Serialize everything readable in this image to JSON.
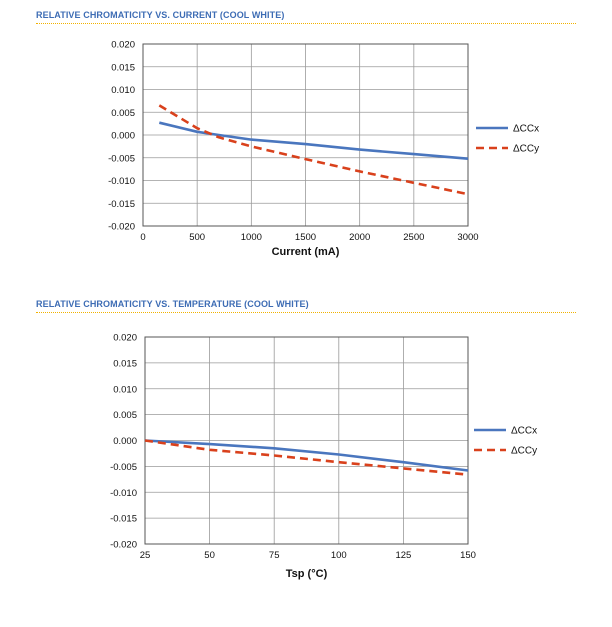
{
  "chart_data": [
    {
      "type": "line",
      "title": "RELATIVE CHROMATICITY VS. CURRENT (COOL WHITE)",
      "xlabel": "Current (mA)",
      "ylabel": "",
      "xlim": [
        0,
        3000
      ],
      "ylim": [
        -0.02,
        0.02
      ],
      "xticks": [
        "0",
        "500",
        "1000",
        "1500",
        "2000",
        "2500",
        "3000"
      ],
      "yticks": [
        "0.020",
        "0.015",
        "0.010",
        "0.005",
        "0.000",
        "-0.005",
        "-0.010",
        "-0.015",
        "-0.020"
      ],
      "grid": true,
      "legend": "right",
      "series": [
        {
          "name": "ΔCCx",
          "color": "#4a76be",
          "style": "solid",
          "x": [
            150,
            500,
            700,
            1000,
            1500,
            2000,
            2500,
            3000
          ],
          "y": [
            0.0027,
            0.0007,
            0.0,
            -0.001,
            -0.002,
            -0.0032,
            -0.0042,
            -0.0052
          ]
        },
        {
          "name": "ΔCCy",
          "color": "#d9411c",
          "style": "dashed",
          "x": [
            150,
            500,
            700,
            1000,
            1500,
            2000,
            2500,
            3000
          ],
          "y": [
            0.0065,
            0.0015,
            -0.0005,
            -0.0025,
            -0.0053,
            -0.008,
            -0.0105,
            -0.013
          ]
        }
      ]
    },
    {
      "type": "line",
      "title": "RELATIVE CHROMATICITY VS. TEMPERATURE (COOL WHITE)",
      "xlabel": "Tsp (°C)",
      "ylabel": "",
      "xlim": [
        25,
        150
      ],
      "ylim": [
        -0.02,
        0.02
      ],
      "xticks": [
        "25",
        "50",
        "75",
        "100",
        "125",
        "150"
      ],
      "yticks": [
        "0.020",
        "0.015",
        "0.010",
        "0.005",
        "0.000",
        "-0.005",
        "-0.010",
        "-0.015",
        "-0.020"
      ],
      "grid": true,
      "legend": "right",
      "series": [
        {
          "name": "ΔCCx",
          "color": "#4a76be",
          "style": "solid",
          "x": [
            25,
            50,
            75,
            100,
            125,
            150
          ],
          "y": [
            0.0,
            -0.0007,
            -0.0015,
            -0.0027,
            -0.0042,
            -0.0058
          ]
        },
        {
          "name": "ΔCCy",
          "color": "#d9411c",
          "style": "dashed",
          "x": [
            25,
            50,
            75,
            100,
            125,
            150
          ],
          "y": [
            0.0,
            -0.0018,
            -0.0029,
            -0.0042,
            -0.0054,
            -0.0066
          ]
        }
      ]
    }
  ]
}
